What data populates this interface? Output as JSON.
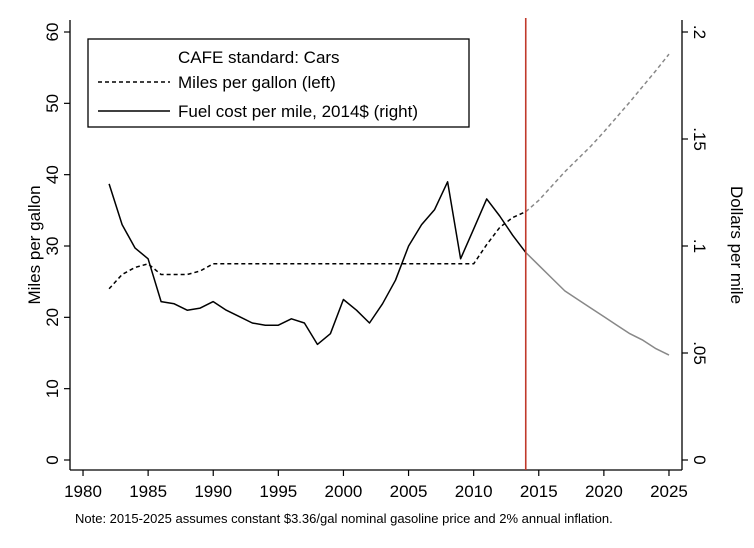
{
  "chart_data": {
    "type": "line",
    "legend": {
      "title": "CAFE standard: Cars",
      "entries": [
        "Miles per gallon (left)",
        "Fuel cost per mile, 2014$ (right)"
      ],
      "placement": "top-left"
    },
    "xlabel": "",
    "ylabel_left": "Miles per gallon",
    "ylabel_right": "Dollars per mile",
    "xlim": [
      1979,
      2026
    ],
    "ylim_left": [
      0,
      60
    ],
    "ylim_right": [
      0,
      0.2
    ],
    "x_ticks": [
      "1980",
      "1985",
      "1990",
      "1995",
      "2000",
      "2005",
      "2010",
      "2015",
      "2020",
      "2025"
    ],
    "y_left_ticks": [
      "0",
      "10",
      "20",
      "30",
      "40",
      "50",
      "60"
    ],
    "y_right_ticks": [
      "0",
      ".05",
      ".1",
      ".15",
      ".2"
    ],
    "vertical_line": {
      "x": 2014,
      "color": "#c0392b"
    },
    "grid": false,
    "series": [
      {
        "name": "Miles per gallon (left)",
        "axis": "left",
        "style": "dashed",
        "historical_color": "#000000",
        "projection_color": "#888888",
        "split_x": 2014,
        "x": [
          1982,
          1983,
          1984,
          1985,
          1986,
          1987,
          1988,
          1989,
          1990,
          1991,
          1992,
          1993,
          1994,
          1995,
          1996,
          1997,
          1998,
          1999,
          2000,
          2001,
          2002,
          2003,
          2004,
          2005,
          2006,
          2007,
          2008,
          2009,
          2010,
          2011,
          2012,
          2013,
          2014,
          2015,
          2016,
          2017,
          2018,
          2019,
          2020,
          2021,
          2022,
          2023,
          2024,
          2025
        ],
        "values": [
          24.0,
          26.0,
          27.0,
          27.5,
          26.0,
          26.0,
          26.0,
          26.5,
          27.5,
          27.5,
          27.5,
          27.5,
          27.5,
          27.5,
          27.5,
          27.5,
          27.5,
          27.5,
          27.5,
          27.5,
          27.5,
          27.5,
          27.5,
          27.5,
          27.5,
          27.5,
          27.5,
          27.5,
          27.5,
          30.2,
          32.6,
          34.0,
          34.8,
          36.4,
          38.4,
          40.4,
          42.2,
          44.0,
          46.0,
          48.1,
          50.2,
          52.4,
          54.6,
          56.9
        ]
      },
      {
        "name": "Fuel cost per mile, 2014$ (right)",
        "axis": "right",
        "style": "solid",
        "historical_color": "#000000",
        "projection_color": "#888888",
        "split_x": 2014,
        "x": [
          1982,
          1983,
          1984,
          1985,
          1986,
          1987,
          1988,
          1989,
          1990,
          1991,
          1992,
          1993,
          1994,
          1995,
          1996,
          1997,
          1998,
          1999,
          2000,
          2001,
          2002,
          2003,
          2004,
          2005,
          2006,
          2007,
          2008,
          2009,
          2010,
          2011,
          2012,
          2013,
          2014,
          2015,
          2016,
          2017,
          2018,
          2019,
          2020,
          2021,
          2022,
          2023,
          2024,
          2025
        ],
        "values": [
          0.129,
          0.11,
          0.099,
          0.094,
          0.074,
          0.073,
          0.07,
          0.071,
          0.074,
          0.07,
          0.067,
          0.064,
          0.063,
          0.063,
          0.066,
          0.064,
          0.054,
          0.059,
          0.075,
          0.07,
          0.064,
          0.073,
          0.084,
          0.1,
          0.11,
          0.117,
          0.13,
          0.094,
          0.108,
          0.122,
          0.114,
          0.105,
          0.097,
          0.091,
          0.085,
          0.079,
          0.075,
          0.071,
          0.067,
          0.063,
          0.059,
          0.056,
          0.052,
          0.049
        ]
      }
    ],
    "note": "Note: 2015-2025 assumes constant $3.36/gal nominal gasoline price and 2% annual inflation."
  }
}
